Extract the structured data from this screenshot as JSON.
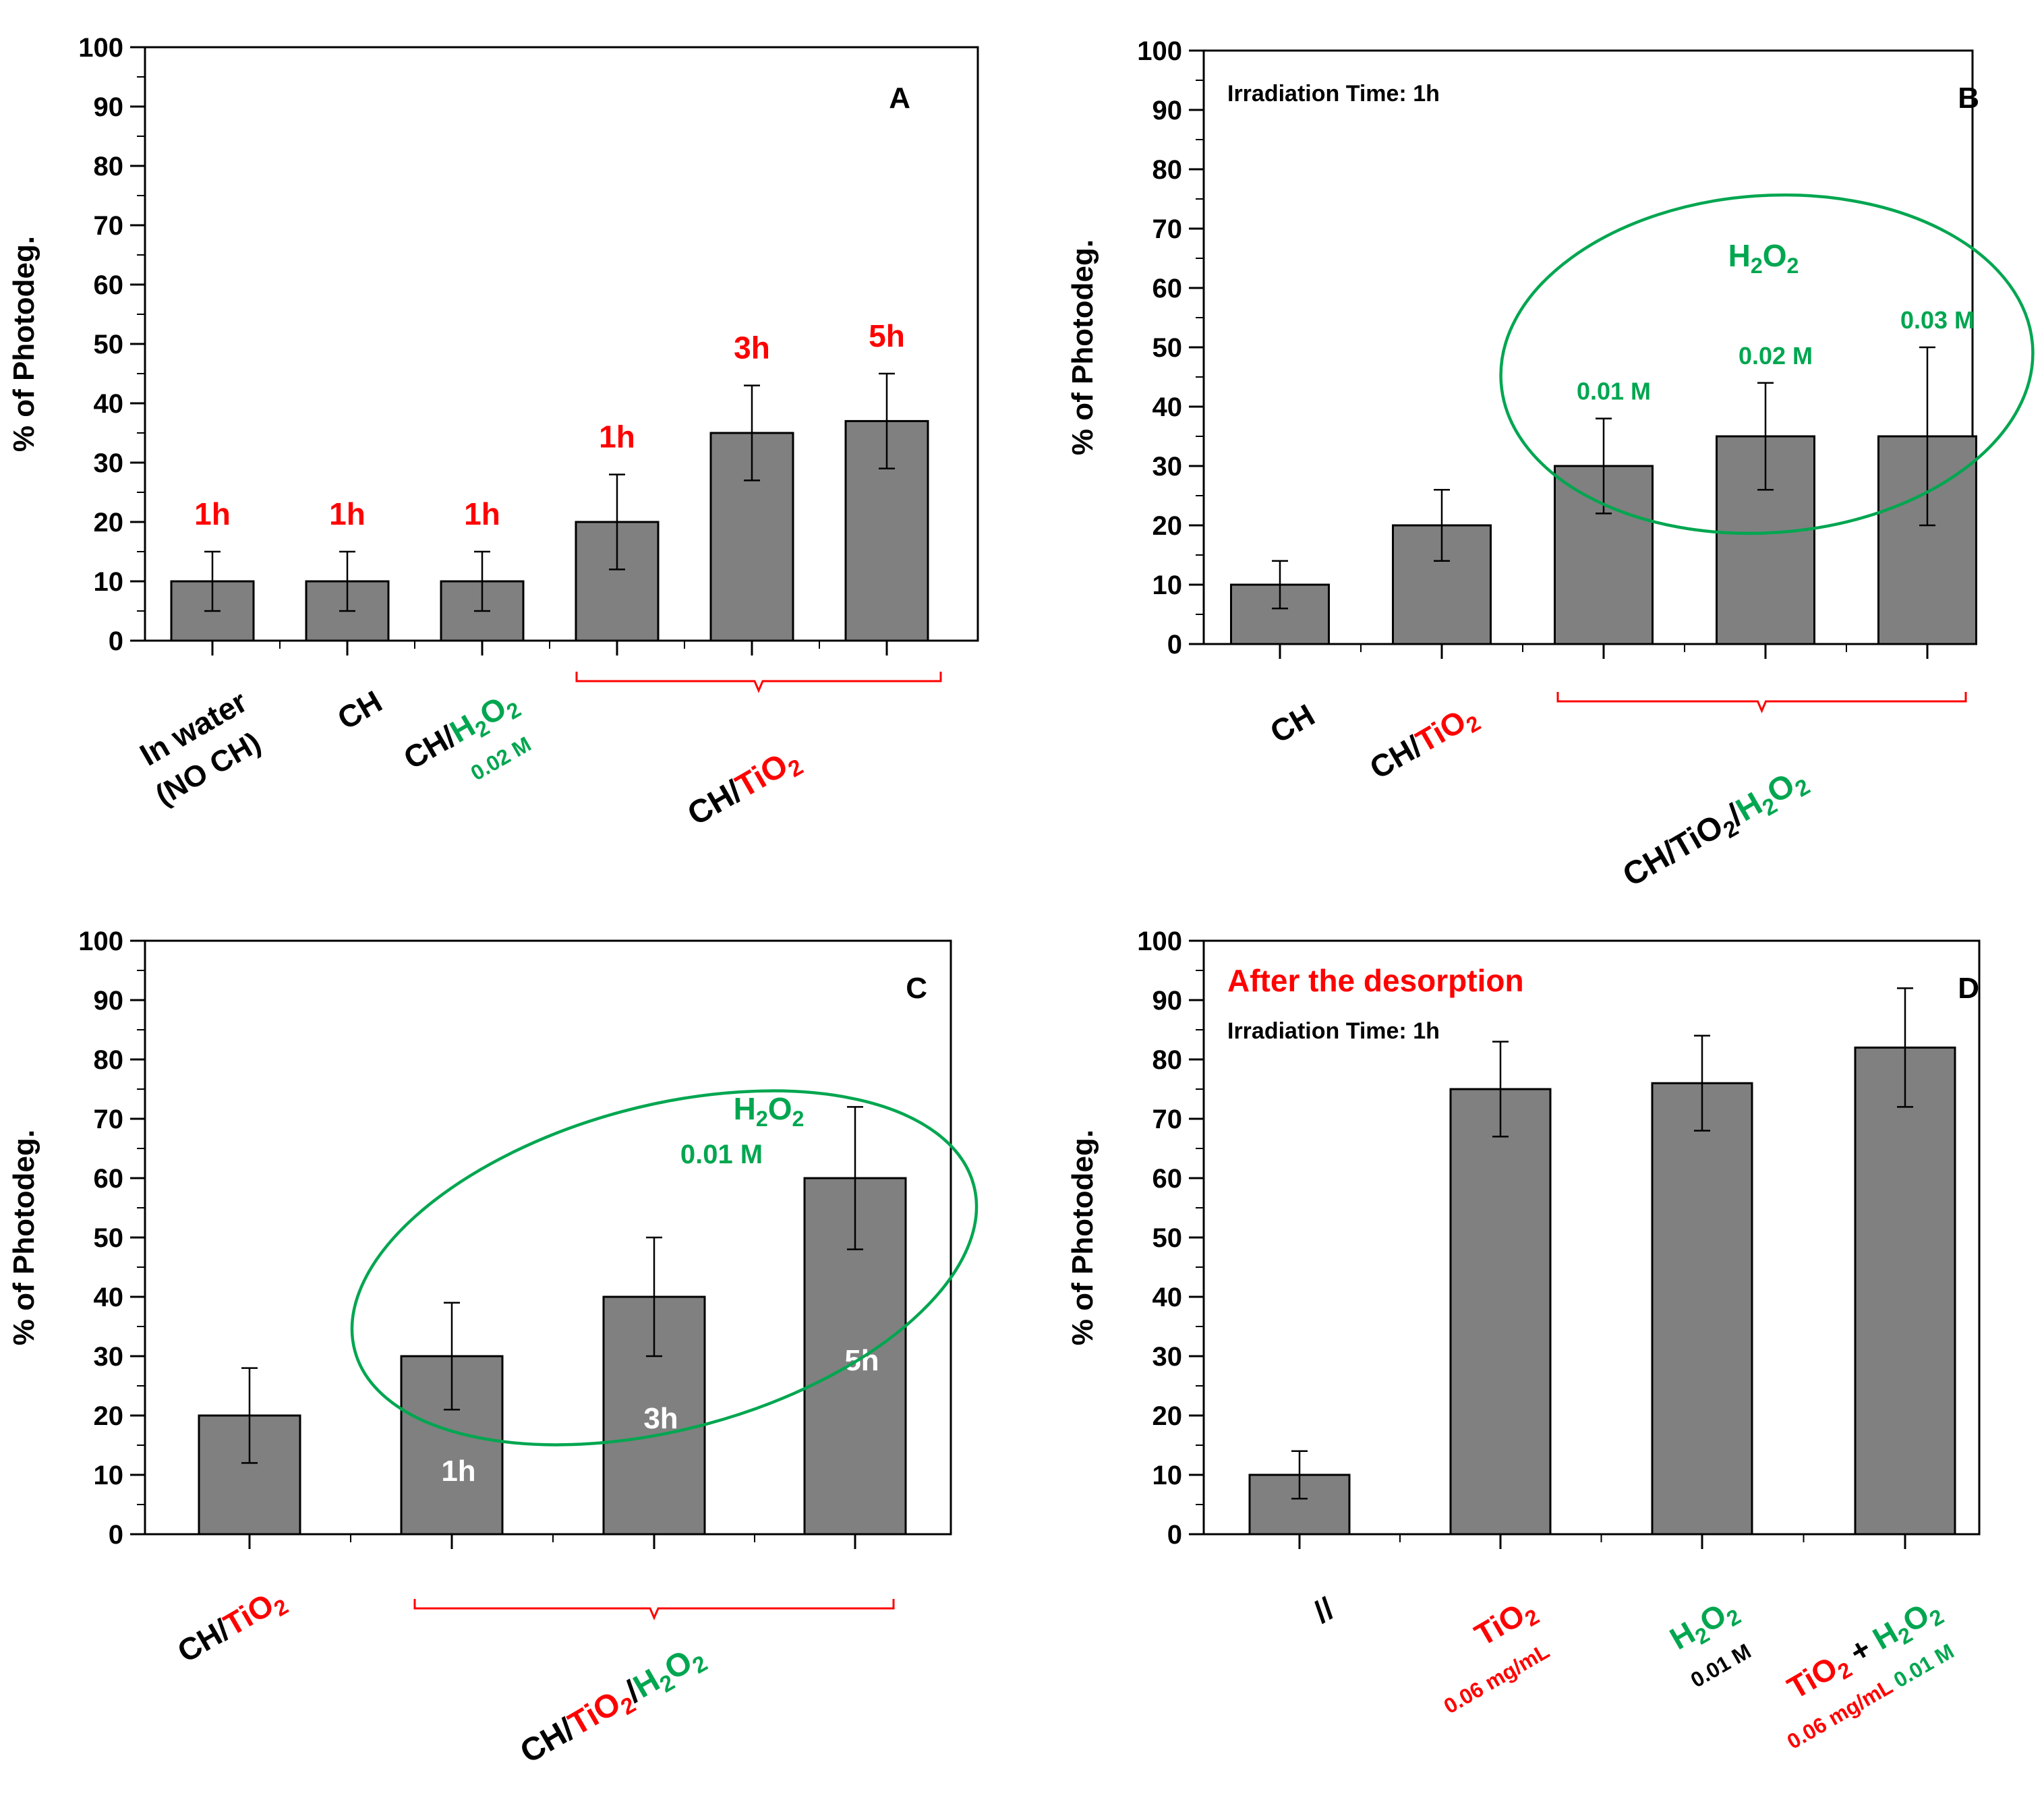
{
  "colors": {
    "red": "#ff0000",
    "green": "#00a650",
    "bar": "#808080"
  },
  "chart_data": [
    {
      "panel": "A",
      "type": "bar",
      "ylabel": "% of Photodeg.",
      "ylim": [
        0,
        100
      ],
      "yticks": [
        0,
        10,
        20,
        30,
        40,
        50,
        60,
        70,
        80,
        90,
        100
      ],
      "categories": [
        {
          "parts": [
            {
              "t": "In water",
              "c": "black"
            }
          ],
          "line2": [
            {
              "t": "(NO CH)",
              "c": "black"
            }
          ]
        },
        {
          "parts": [
            {
              "t": "CH",
              "c": "black"
            }
          ]
        },
        {
          "parts": [
            {
              "t": "CH/",
              "c": "black"
            },
            {
              "t": "H",
              "c": "green"
            },
            {
              "t": "2",
              "c": "green",
              "sub": true
            },
            {
              "t": "O",
              "c": "green"
            },
            {
              "t": "2",
              "c": "green",
              "sub": true
            }
          ],
          "line2": [
            {
              "t": "0.02 M",
              "c": "green",
              "small": true
            }
          ]
        },
        {
          "parts": []
        },
        {
          "parts": []
        },
        {
          "parts": []
        }
      ],
      "values": [
        10,
        10,
        10,
        20,
        35,
        37
      ],
      "errors": [
        5,
        5,
        5,
        8,
        8,
        8
      ],
      "bar_labels": [
        "1h",
        "1h",
        "1h",
        "1h",
        "3h",
        "5h"
      ],
      "group_label": [
        {
          "t": "CH/",
          "c": "black"
        },
        {
          "t": "TiO",
          "c": "red"
        },
        {
          "t": "2",
          "c": "red",
          "sub": true
        }
      ]
    },
    {
      "panel": "B",
      "type": "bar",
      "ylabel": "% of Photodeg.",
      "ylim": [
        0,
        100
      ],
      "yticks": [
        0,
        10,
        20,
        30,
        40,
        50,
        60,
        70,
        80,
        90,
        100
      ],
      "annotation": "Irradiation Time: 1h",
      "categories": [
        {
          "parts": [
            {
              "t": "CH",
              "c": "black"
            }
          ]
        },
        {
          "parts": [
            {
              "t": "CH/",
              "c": "black"
            },
            {
              "t": "TiO",
              "c": "red"
            },
            {
              "t": "2",
              "c": "red",
              "sub": true
            }
          ]
        },
        {
          "parts": []
        },
        {
          "parts": []
        },
        {
          "parts": []
        }
      ],
      "values": [
        10,
        20,
        30,
        35,
        35
      ],
      "errors": [
        4,
        6,
        8,
        9,
        15
      ],
      "bar_labels": [
        "",
        "",
        "0.01 M",
        "0.02 M",
        "0.03 M"
      ],
      "ellipse_label": [
        {
          "t": "H",
          "c": "green"
        },
        {
          "t": "2",
          "c": "green",
          "sub": true
        },
        {
          "t": "O",
          "c": "green"
        },
        {
          "t": "2",
          "c": "green",
          "sub": true
        }
      ],
      "group_label": [
        {
          "t": "CH/TiO",
          "c": "black"
        },
        {
          "t": "2",
          "c": "black",
          "sub": true
        },
        {
          "t": "/",
          "c": "black"
        },
        {
          "t": "H",
          "c": "green"
        },
        {
          "t": "2",
          "c": "green",
          "sub": true
        },
        {
          "t": "O",
          "c": "green"
        },
        {
          "t": "2",
          "c": "green",
          "sub": true
        }
      ]
    },
    {
      "panel": "C",
      "type": "bar",
      "ylabel": "% of Photodeg.",
      "ylim": [
        0,
        100
      ],
      "yticks": [
        0,
        10,
        20,
        30,
        40,
        50,
        60,
        70,
        80,
        90,
        100
      ],
      "categories": [
        {
          "parts": [
            {
              "t": "CH/",
              "c": "black"
            },
            {
              "t": "TiO",
              "c": "red"
            },
            {
              "t": "2",
              "c": "red",
              "sub": true
            }
          ]
        },
        {
          "parts": []
        },
        {
          "parts": []
        },
        {
          "parts": []
        }
      ],
      "values": [
        20,
        30,
        40,
        60
      ],
      "errors": [
        8,
        9,
        10,
        12
      ],
      "bar_labels": [
        "",
        "1h",
        "3h",
        "5h"
      ],
      "ellipse_label": [
        {
          "t": "H",
          "c": "green"
        },
        {
          "t": "2",
          "c": "green",
          "sub": true
        },
        {
          "t": "O",
          "c": "green"
        },
        {
          "t": "2",
          "c": "green",
          "sub": true
        }
      ],
      "ellipse_label2": "0.01 M",
      "group_label": [
        {
          "t": "CH/",
          "c": "black"
        },
        {
          "t": "TiO",
          "c": "red"
        },
        {
          "t": "2",
          "c": "red",
          "sub": true
        },
        {
          "t": "/",
          "c": "black"
        },
        {
          "t": "H",
          "c": "green"
        },
        {
          "t": "2",
          "c": "green",
          "sub": true
        },
        {
          "t": "O",
          "c": "green"
        },
        {
          "t": "2",
          "c": "green",
          "sub": true
        }
      ]
    },
    {
      "panel": "D",
      "type": "bar",
      "ylabel": "% of Photodeg.",
      "ylim": [
        0,
        100
      ],
      "yticks": [
        0,
        10,
        20,
        30,
        40,
        50,
        60,
        70,
        80,
        90,
        100
      ],
      "title": "After the desorption",
      "annotation": "Irradiation Time: 1h",
      "categories": [
        {
          "parts": [
            {
              "t": "//",
              "c": "black"
            }
          ]
        },
        {
          "parts": [
            {
              "t": "TiO",
              "c": "red"
            },
            {
              "t": "2",
              "c": "red",
              "sub": true
            }
          ],
          "line2": [
            {
              "t": "0.06 mg/mL",
              "c": "red",
              "small": true
            }
          ]
        },
        {
          "parts": [
            {
              "t": "H",
              "c": "green"
            },
            {
              "t": "2",
              "c": "green",
              "sub": true
            },
            {
              "t": "O",
              "c": "green"
            },
            {
              "t": "2",
              "c": "green",
              "sub": true
            }
          ],
          "line2": [
            {
              "t": "0.01 M",
              "c": "black",
              "small": true
            }
          ]
        },
        {
          "parts": [
            {
              "t": "TiO",
              "c": "red"
            },
            {
              "t": "2",
              "c": "red",
              "sub": true
            },
            {
              "t": " + ",
              "c": "black"
            },
            {
              "t": "H",
              "c": "green"
            },
            {
              "t": "2",
              "c": "green",
              "sub": true
            },
            {
              "t": "O",
              "c": "green"
            },
            {
              "t": "2",
              "c": "green",
              "sub": true
            }
          ],
          "line2": [
            {
              "t": "0.06 mg/mL",
              "c": "red",
              "small": true
            },
            {
              "t": "     0.01 M",
              "c": "green",
              "small": true
            }
          ]
        }
      ],
      "values": [
        10,
        75,
        76,
        82
      ],
      "errors": [
        4,
        8,
        8,
        10
      ],
      "bar_labels": [
        "",
        "",
        "",
        ""
      ]
    }
  ]
}
